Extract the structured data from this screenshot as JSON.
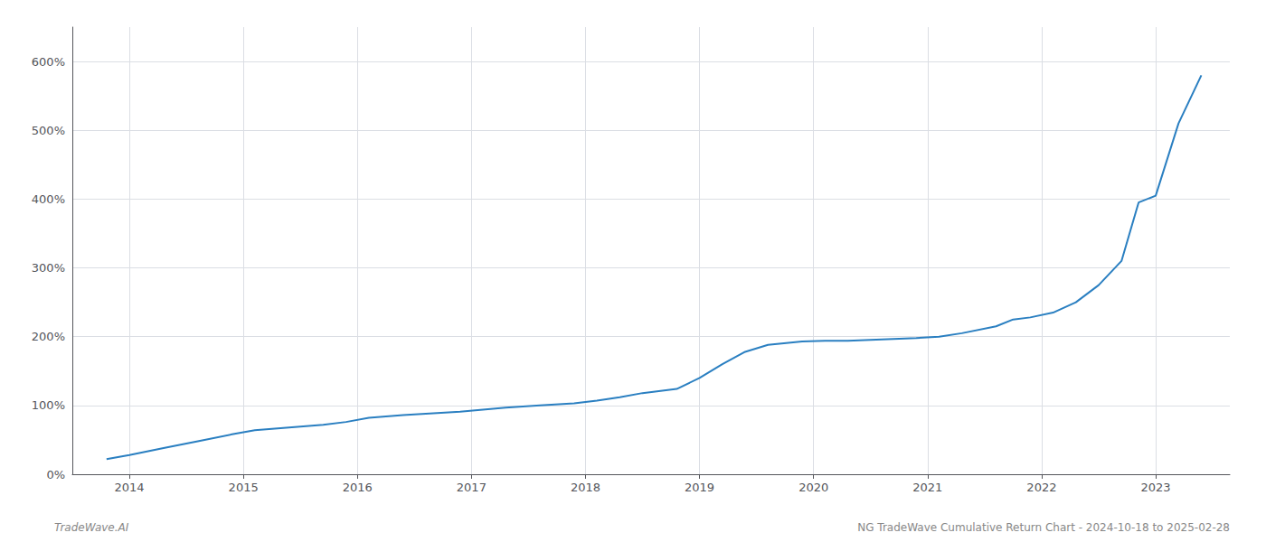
{
  "chart_data": {
    "type": "line",
    "x": [
      2013.8,
      2014.0,
      2014.3,
      2014.6,
      2014.9,
      2015.1,
      2015.4,
      2015.7,
      2015.9,
      2016.1,
      2016.4,
      2016.7,
      2016.9,
      2017.1,
      2017.3,
      2017.6,
      2017.9,
      2018.1,
      2018.3,
      2018.5,
      2018.8,
      2019.0,
      2019.2,
      2019.4,
      2019.6,
      2019.9,
      2020.1,
      2020.3,
      2020.6,
      2020.9,
      2021.1,
      2021.3,
      2021.6,
      2021.75,
      2021.9,
      2022.1,
      2022.3,
      2022.5,
      2022.7,
      2022.85,
      2023.0,
      2023.2,
      2023.4
    ],
    "values": [
      22,
      28,
      38,
      48,
      58,
      64,
      68,
      72,
      76,
      82,
      86,
      89,
      91,
      94,
      97,
      100,
      103,
      107,
      112,
      118,
      124,
      140,
      160,
      178,
      188,
      193,
      194,
      194,
      196,
      198,
      200,
      205,
      215,
      225,
      228,
      235,
      250,
      275,
      310,
      395,
      405,
      510,
      580
    ],
    "color": "#2a7fc1",
    "xlim": [
      2013.5,
      2023.65
    ],
    "ylim": [
      0,
      650
    ],
    "xticks": [
      2014,
      2015,
      2016,
      2017,
      2018,
      2019,
      2020,
      2021,
      2022,
      2023
    ],
    "yticks": [
      {
        "value": 0,
        "label": "0%"
      },
      {
        "value": 100,
        "label": "100%"
      },
      {
        "value": 200,
        "label": "200%"
      },
      {
        "value": 300,
        "label": "300%"
      },
      {
        "value": 400,
        "label": "400%"
      },
      {
        "value": 500,
        "label": "500%"
      },
      {
        "value": 600,
        "label": "600%"
      }
    ],
    "grid": true,
    "annotations": [
      "TradeWave.AI",
      "NG TradeWave Cumulative Return Chart - 2024-10-18 to 2025-02-28"
    ]
  }
}
